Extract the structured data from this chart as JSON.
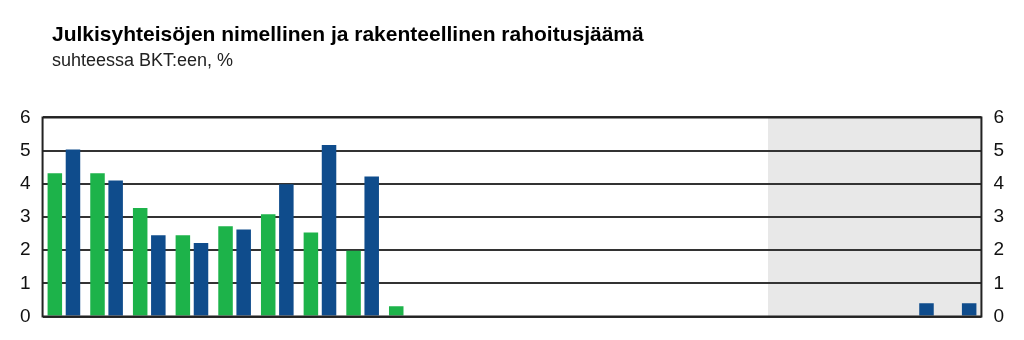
{
  "chart_data": {
    "type": "bar",
    "title": "Julkisyhteisöjen nimellinen ja rakenteellinen rahoitusjäämä",
    "subtitle": "suhteessa BKT:een, %",
    "categories": [
      null,
      null,
      null,
      null,
      null,
      null,
      null,
      null,
      null,
      null,
      null,
      null,
      null,
      null,
      null,
      null,
      null,
      null,
      null,
      null,
      null,
      null
    ],
    "series": [
      {
        "color": "#1db34a",
        "values": [
          4.32,
          4.32,
          3.27,
          2.45,
          2.72,
          3.08,
          2.53,
          1.98,
          0.31,
          null,
          null,
          null,
          null,
          null,
          null,
          null,
          null,
          null,
          null,
          null,
          null,
          null
        ]
      },
      {
        "color": "#0f4c8c",
        "values": [
          5.03,
          4.1,
          2.45,
          2.22,
          2.62,
          3.99,
          5.17,
          4.22,
          null,
          null,
          null,
          null,
          null,
          null,
          null,
          null,
          null,
          null,
          null,
          null,
          0.4,
          0.4
        ]
      }
    ],
    "ylim": [
      0,
      6
    ],
    "yticks": [
      0,
      1,
      2,
      3,
      4,
      5,
      6
    ],
    "y2lim": [
      0,
      6
    ],
    "y2ticks": [
      0,
      1,
      2,
      3,
      4,
      5,
      6
    ],
    "grid": "y",
    "legend": false,
    "tick_labels": "y"
  }
}
